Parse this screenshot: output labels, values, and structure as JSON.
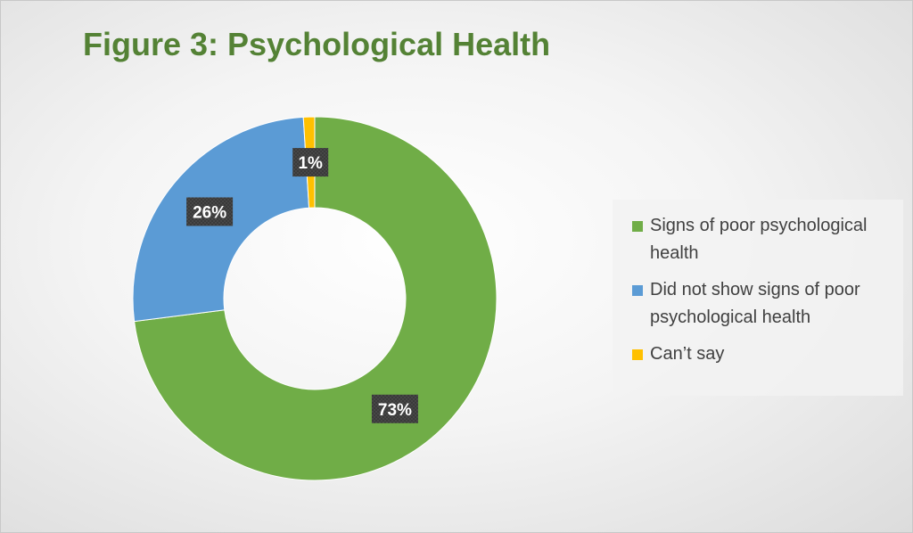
{
  "chart_data": {
    "type": "donut",
    "title": "Figure 3: Psychological Health",
    "slices": [
      {
        "label": "Signs of poor psychological health",
        "value": 73,
        "display": "73%",
        "color": "#70AD47"
      },
      {
        "label": "Did not show signs of poor psychological health",
        "value": 26,
        "display": "26%",
        "color": "#5B9BD5"
      },
      {
        "label": "Can’t say",
        "value": 1,
        "display": "1%",
        "color": "#FFC000"
      }
    ],
    "legend_position": "right"
  },
  "colors": {
    "title": "#548235",
    "label_bg": "#3a3a3a",
    "label_text": "#ffffff"
  }
}
